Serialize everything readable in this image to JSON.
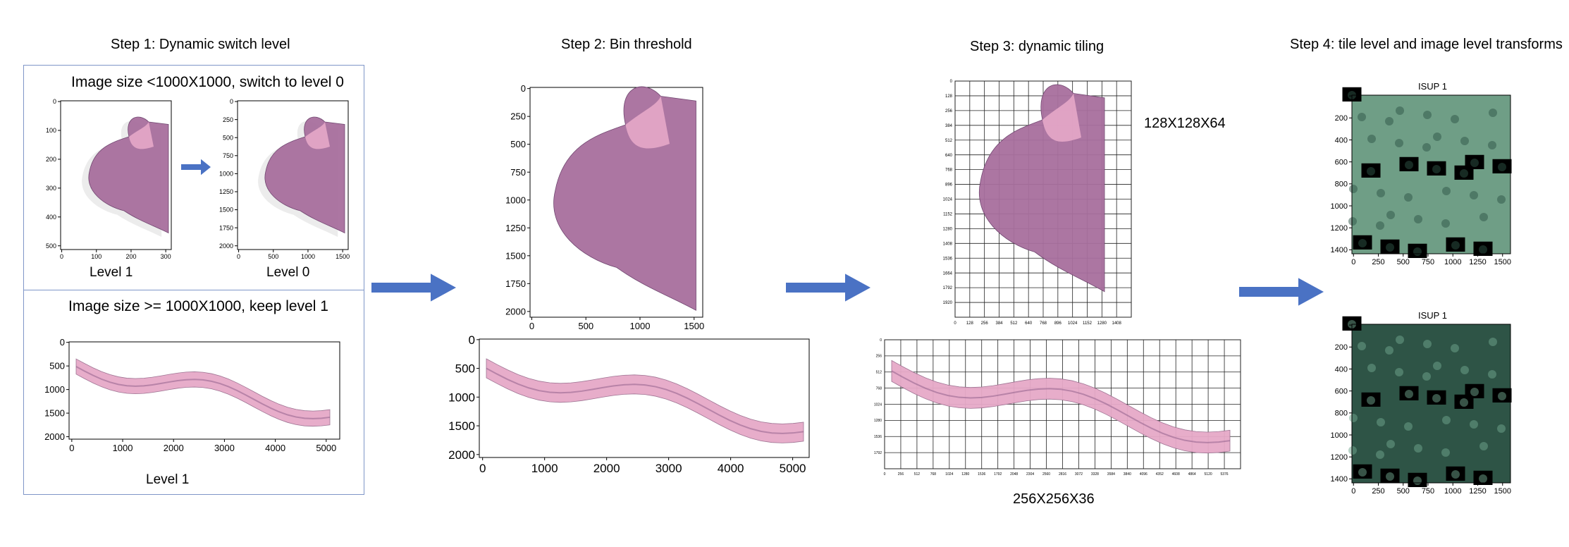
{
  "steps": [
    {
      "title": "Step 1: Dynamic switch level"
    },
    {
      "title": "Step 2: Bin threshold"
    },
    {
      "title": "Step 3: dynamic tiling"
    },
    {
      "title": "Step 4: tile level and image level transforms"
    }
  ],
  "step1": {
    "upper_caption": "Image size <1000X1000, switch to level 0",
    "lower_caption": "Image size >= 1000X1000, keep level 1",
    "label_level1_a": "Level  1",
    "label_level0": "Level 0",
    "label_level1_b": "Level  1",
    "plot_a": {
      "yticks": [
        "0",
        "100",
        "200",
        "300",
        "400",
        "500"
      ],
      "xticks": [
        "0",
        "100",
        "200",
        "300"
      ]
    },
    "plot_b": {
      "yticks": [
        "0",
        "250",
        "500",
        "750",
        "1000",
        "1250",
        "1500",
        "1750",
        "2000"
      ],
      "xticks": [
        "0",
        "500",
        "1000",
        "1500"
      ]
    },
    "plot_c": {
      "yticks": [
        "0",
        "500",
        "1000",
        "1500",
        "2000"
      ],
      "xticks": [
        "0",
        "1000",
        "2000",
        "3000",
        "4000",
        "5000"
      ]
    }
  },
  "step2": {
    "plot_a": {
      "yticks": [
        "0",
        "250",
        "500",
        "750",
        "1000",
        "1250",
        "1500",
        "1750",
        "2000"
      ],
      "xticks": [
        "0",
        "500",
        "1000",
        "1500"
      ]
    },
    "plot_b": {
      "yticks": [
        "0",
        "500",
        "1000",
        "1500",
        "2000"
      ],
      "xticks": [
        "0",
        "1000",
        "2000",
        "3000",
        "4000",
        "5000"
      ]
    }
  },
  "step3": {
    "label_top": "128X128X64",
    "label_bottom": "256X256X36",
    "grid_a": {
      "yticks": [
        "0",
        "128",
        "256",
        "384",
        "512",
        "640",
        "768",
        "896",
        "1024",
        "1152",
        "1280",
        "1408",
        "1536",
        "1664",
        "1792",
        "1920"
      ],
      "xticks": [
        "0",
        "128",
        "256",
        "384",
        "512",
        "640",
        "768",
        "896",
        "1024",
        "1152",
        "1280",
        "1408"
      ]
    },
    "grid_b": {
      "yticks": [
        "0",
        "256",
        "512",
        "768",
        "1024",
        "1280",
        "1536",
        "1792"
      ],
      "xticks": [
        "0",
        "256",
        "512",
        "768",
        "1024",
        "1280",
        "1536",
        "1792",
        "2048",
        "2304",
        "2560",
        "2816",
        "3072",
        "3328",
        "3584",
        "3840",
        "4096",
        "4352",
        "4608",
        "4864",
        "5120",
        "5376"
      ]
    }
  },
  "step4": {
    "title_a": "ISUP 1",
    "title_b": "ISUP 1",
    "plot_a": {
      "yticks": [
        "0",
        "200",
        "400",
        "600",
        "800",
        "1000",
        "1200",
        "1400"
      ],
      "xticks": [
        "0",
        "250",
        "500",
        "750",
        "1000",
        "1250",
        "1500"
      ]
    },
    "plot_b": {
      "yticks": [
        "0",
        "200",
        "400",
        "600",
        "800",
        "1000",
        "1200",
        "1400"
      ],
      "xticks": [
        "0",
        "250",
        "500",
        "750",
        "1000",
        "1250",
        "1500"
      ]
    }
  },
  "colors": {
    "arrow": "#4a72c4",
    "box": "#7f96c8",
    "tissue": "#a86f9e",
    "tissue_light": "#e6a9c8",
    "stain_green": "#6f9e86",
    "stain_dark": "#2e5446"
  }
}
